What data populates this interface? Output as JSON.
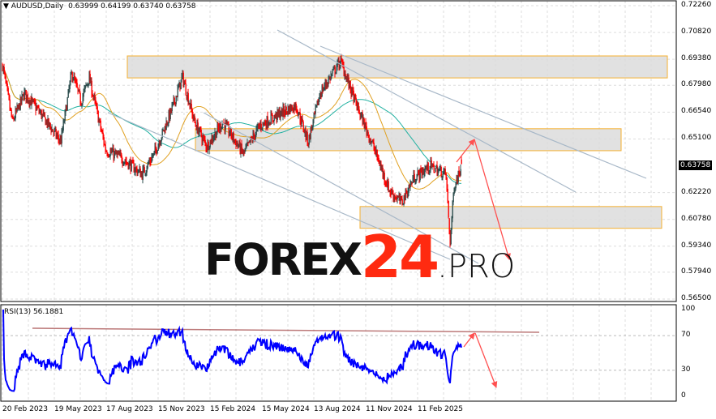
{
  "header": {
    "symbol": "AUDUSD,Daily",
    "ohlc": "0.63999 0.64199 0.63740 0.63758"
  },
  "rsi_header": "RSI(13) 56.1881",
  "current_price_label": "0.63758",
  "watermark": "FOREX24.PRO",
  "colors": {
    "bull_candle": "#2f4f4f",
    "bear_candle": "#ff0000",
    "ma_fast": "#e0a020",
    "ma_slow": "#20b0a0",
    "rsi": "#0000ff",
    "zone_fill": "#dcdcdc",
    "zone_border": "#f5b030",
    "trendline": "#a8b8c8",
    "forecast_arrow": "#ff5050",
    "logo_black": "#111111",
    "logo_red": "#ff2a10"
  },
  "chart_data": [
    {
      "type": "candlestick",
      "title": "AUDUSD,Daily",
      "y_ticks": [
        "0.72260",
        "0.70820",
        "0.69380",
        "0.67980",
        "0.66540",
        "0.65100",
        "0.62220",
        "0.60780",
        "0.59340",
        "0.57940",
        "0.56500"
      ],
      "ylim": [
        0.565,
        0.7226
      ],
      "x_ticks": [
        "20 Feb 2023",
        "19 May 2023",
        "17 Aug 2023",
        "15 Nov 2023",
        "15 Feb 2024",
        "15 May 2024",
        "13 Aug 2024",
        "11 Nov 2024",
        "11 Feb 2025"
      ],
      "grid": true,
      "approx_price_path": [
        [
          "2023-02-20",
          0.6908
        ],
        [
          "2023-03-09",
          0.66
        ],
        [
          "2023-03-30",
          0.6756
        ],
        [
          "2023-04-27",
          0.6647
        ],
        [
          "2023-06-01",
          0.6495
        ],
        [
          "2023-06-20",
          0.6865
        ],
        [
          "2023-07-06",
          0.671
        ],
        [
          "2023-07-20",
          0.684
        ],
        [
          "2023-08-18",
          0.645
        ],
        [
          "2023-09-15",
          0.6407
        ],
        [
          "2023-10-20",
          0.632
        ],
        [
          "2023-11-10",
          0.643
        ],
        [
          "2023-12-08",
          0.6647
        ],
        [
          "2023-12-29",
          0.6843
        ],
        [
          "2024-01-19",
          0.66
        ],
        [
          "2024-02-09",
          0.647
        ],
        [
          "2024-03-08",
          0.66
        ],
        [
          "2024-04-13",
          0.643
        ],
        [
          "2024-05-11",
          0.658
        ],
        [
          "2024-06-15",
          0.6647
        ],
        [
          "2024-07-13",
          0.669
        ],
        [
          "2024-08-03",
          0.6495
        ],
        [
          "2024-08-24",
          0.6756
        ],
        [
          "2024-09-28",
          0.693
        ],
        [
          "2024-10-26",
          0.669
        ],
        [
          "2024-11-24",
          0.647
        ],
        [
          "2024-12-22",
          0.6233
        ],
        [
          "2025-01-12",
          0.6168
        ],
        [
          "2025-02-02",
          0.6299
        ],
        [
          "2025-03-02",
          0.6364
        ],
        [
          "2025-03-30",
          0.632
        ],
        [
          "2025-04-06",
          0.595
        ],
        [
          "2025-04-13",
          0.6255
        ],
        [
          "2025-04-27",
          0.63758
        ]
      ],
      "last": {
        "open": 0.63999,
        "high": 0.64199,
        "low": 0.6374,
        "close": 0.63758
      },
      "zones": [
        {
          "from": 0.6838,
          "to": 0.6956
        },
        {
          "from": 0.6447,
          "to": 0.6565
        },
        {
          "from": 0.603,
          "to": 0.6147
        }
      ]
    },
    {
      "type": "line",
      "title": "RSI(13) 56.1881",
      "y_ticks": [
        "100",
        "70",
        "30",
        "0"
      ],
      "ylim": [
        0,
        100
      ],
      "levels": [
        70,
        30
      ],
      "last_value": 56.1881
    }
  ]
}
